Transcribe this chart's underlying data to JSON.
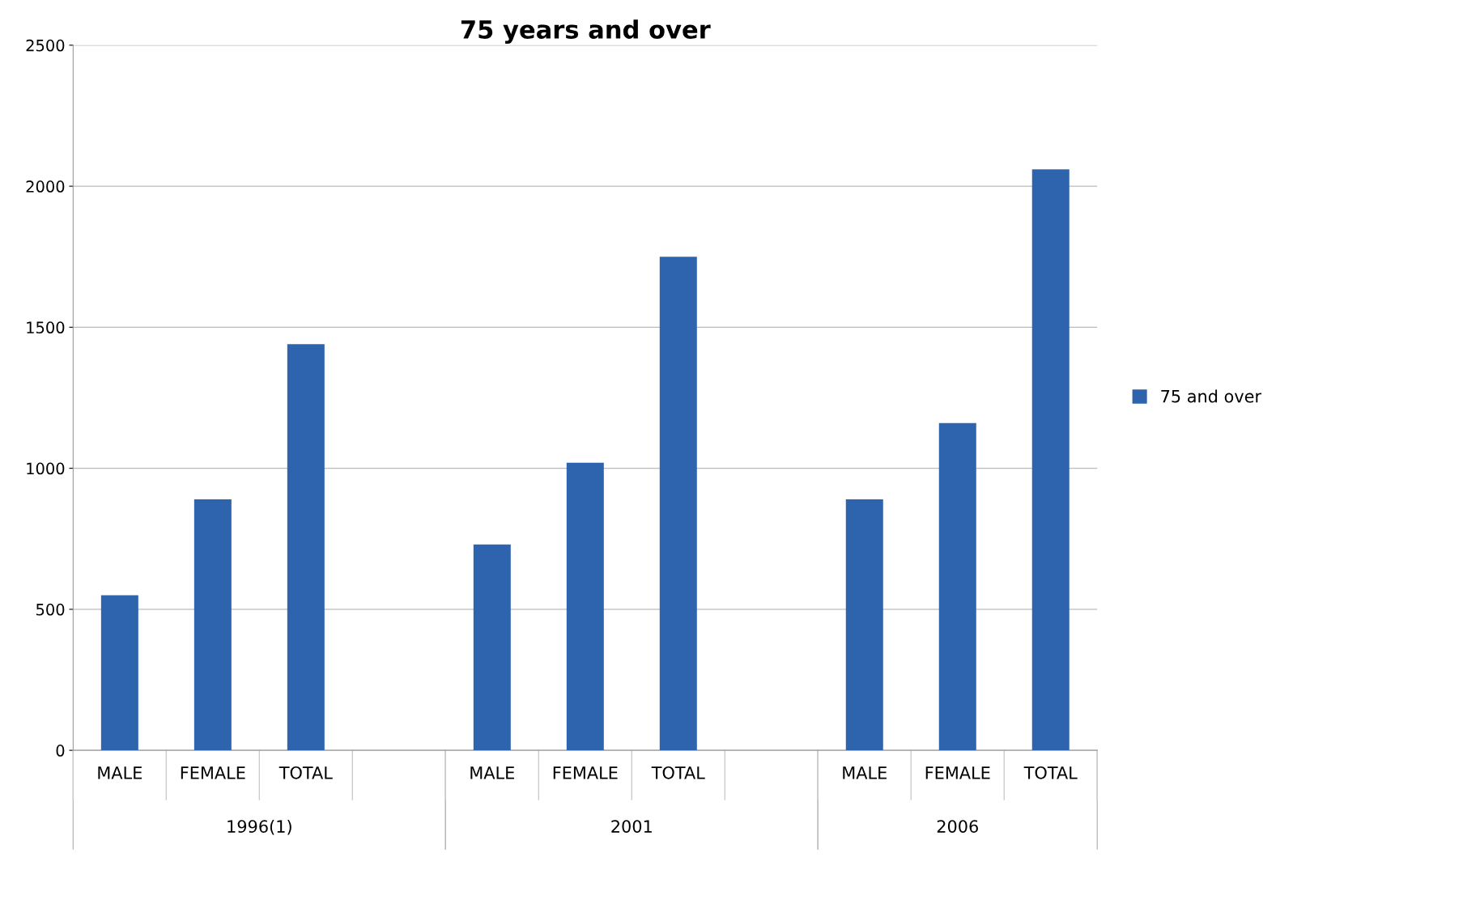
{
  "chart_data": {
    "type": "bar",
    "title": "75 years and over",
    "categories": [
      "MALE",
      "FEMALE",
      "TOTAL",
      null,
      "MALE",
      "FEMALE",
      "TOTAL",
      null,
      "MALE",
      "FEMALE",
      "TOTAL"
    ],
    "series": [
      {
        "name": "75 and over",
        "color": "#2e64ad",
        "values": [
          550,
          890,
          1440,
          null,
          730,
          1020,
          1750,
          null,
          890,
          1160,
          2060
        ]
      }
    ],
    "annotations": [
      "1996(1)",
      "2001",
      "2006"
    ],
    "ylim": [
      0,
      2500
    ],
    "yticks": [
      0,
      500,
      1000,
      1500,
      2000,
      2500
    ],
    "grid": "y",
    "legend": "right"
  }
}
